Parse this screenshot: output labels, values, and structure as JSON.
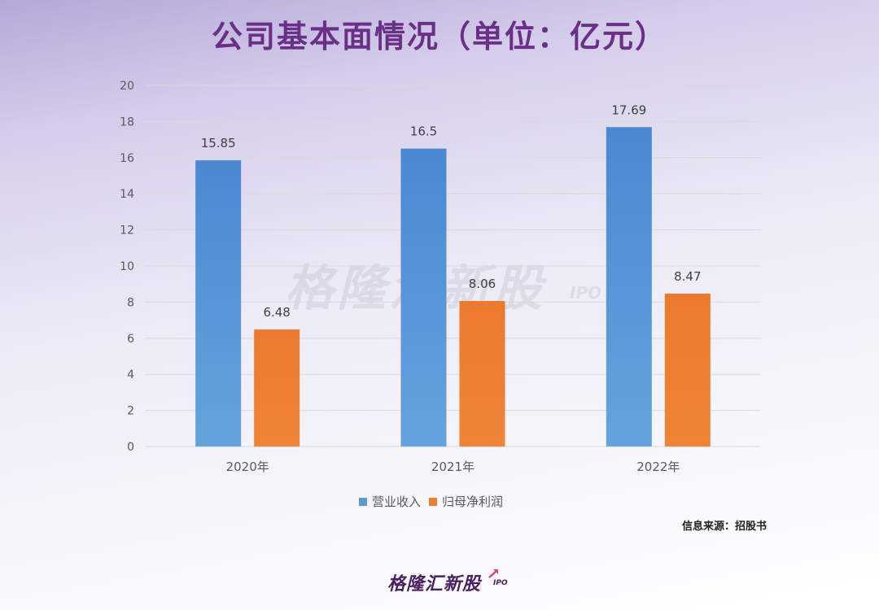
{
  "title": "公司基本面情况（单位：亿元）",
  "watermark": "格隆汇新股",
  "watermark_sub": "IPO",
  "source": "信息来源：招股书",
  "brand": "格隆汇新股",
  "brand_sub": "IPO",
  "colors": {
    "revenue": "#4f8fd6",
    "profit": "#ed7d31",
    "grid": "#d9d9d9",
    "axis_text": "#595959"
  },
  "chart_data": {
    "type": "bar",
    "categories": [
      "2020年",
      "2021年",
      "2022年"
    ],
    "series": [
      {
        "name": "营业收入",
        "values": [
          15.85,
          16.5,
          17.69
        ]
      },
      {
        "name": "归母净利润",
        "values": [
          6.48,
          8.06,
          8.47
        ]
      }
    ],
    "data_labels": [
      [
        "15.85",
        "16.5",
        "17.69"
      ],
      [
        "6.48",
        "8.06",
        "8.47"
      ]
    ],
    "ylim": [
      0,
      20
    ],
    "yticks": [
      0,
      2,
      4,
      6,
      8,
      10,
      12,
      14,
      16,
      18,
      20
    ],
    "grid": true,
    "legend": "bottom"
  }
}
